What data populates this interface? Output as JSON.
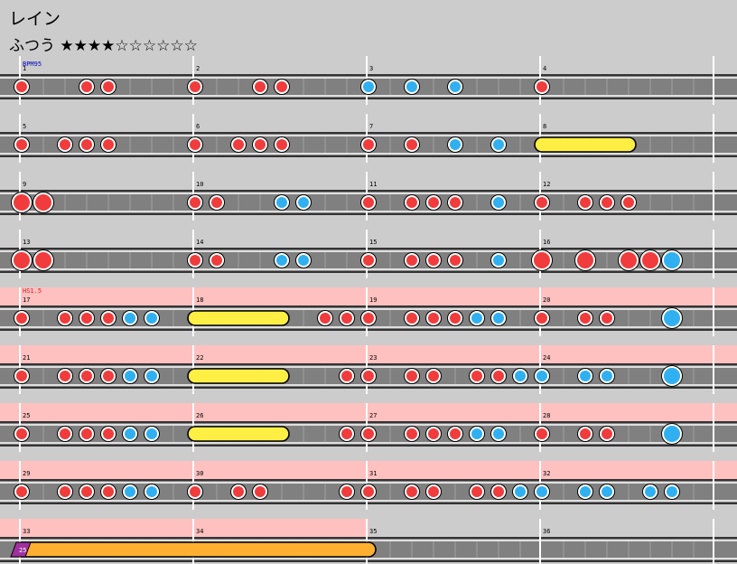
{
  "song": {
    "title": "レイン",
    "difficulty": "ふつう",
    "stars_filled": "★★★★",
    "stars_empty": "☆☆☆☆☆☆",
    "level": 4,
    "level_max": 10
  },
  "markers": {
    "bpm": "BPM95",
    "hs": "HS1.5"
  },
  "colors": {
    "background": "#cccccc",
    "lane": "#808080",
    "highlight": "#ffc0c0",
    "don": "#f03c3c",
    "ka": "#30b0f0",
    "roll": "#ffee44",
    "balloon": "#ffb030",
    "bpm_text": "#0000c0",
    "hs_text": "#e02020"
  },
  "chart": {
    "rows": [
      {
        "measures": [
          1,
          2,
          3,
          4
        ],
        "highlight": false,
        "notes": [
          {
            "m": 1,
            "b": 0,
            "t": "don"
          },
          {
            "m": 1,
            "b": 3,
            "t": "don"
          },
          {
            "m": 1,
            "b": 4,
            "t": "don"
          },
          {
            "m": 2,
            "b": 0,
            "t": "don"
          },
          {
            "m": 2,
            "b": 3,
            "t": "don"
          },
          {
            "m": 2,
            "b": 4,
            "t": "don"
          },
          {
            "m": 3,
            "b": 0,
            "t": "ka"
          },
          {
            "m": 3,
            "b": 2,
            "t": "ka"
          },
          {
            "m": 3,
            "b": 4,
            "t": "ka"
          },
          {
            "m": 4,
            "b": 0,
            "t": "don"
          }
        ]
      },
      {
        "measures": [
          5,
          6,
          7,
          8
        ],
        "highlight": false,
        "notes": [
          {
            "m": 5,
            "b": 0,
            "t": "don"
          },
          {
            "m": 5,
            "b": 2,
            "t": "don"
          },
          {
            "m": 5,
            "b": 3,
            "t": "don"
          },
          {
            "m": 5,
            "b": 4,
            "t": "don"
          },
          {
            "m": 6,
            "b": 0,
            "t": "don"
          },
          {
            "m": 6,
            "b": 2,
            "t": "don"
          },
          {
            "m": 6,
            "b": 3,
            "t": "don"
          },
          {
            "m": 6,
            "b": 4,
            "t": "don"
          },
          {
            "m": 7,
            "b": 0,
            "t": "don"
          },
          {
            "m": 7,
            "b": 2,
            "t": "don"
          },
          {
            "m": 7,
            "b": 4,
            "t": "ka"
          },
          {
            "m": 7,
            "b": 6,
            "t": "ka"
          },
          {
            "m": 8,
            "b": 0,
            "t": "roll",
            "e": 4
          }
        ]
      },
      {
        "measures": [
          9,
          10,
          11,
          12
        ],
        "highlight": false,
        "notes": [
          {
            "m": 9,
            "b": 0,
            "t": "DON"
          },
          {
            "m": 9,
            "b": 1,
            "t": "DON"
          },
          {
            "m": 10,
            "b": 0,
            "t": "don"
          },
          {
            "m": 10,
            "b": 1,
            "t": "don"
          },
          {
            "m": 10,
            "b": 4,
            "t": "ka"
          },
          {
            "m": 10,
            "b": 5,
            "t": "ka"
          },
          {
            "m": 11,
            "b": 0,
            "t": "don"
          },
          {
            "m": 11,
            "b": 2,
            "t": "don"
          },
          {
            "m": 11,
            "b": 3,
            "t": "don"
          },
          {
            "m": 11,
            "b": 4,
            "t": "don"
          },
          {
            "m": 11,
            "b": 6,
            "t": "ka"
          },
          {
            "m": 12,
            "b": 0,
            "t": "don"
          },
          {
            "m": 12,
            "b": 2,
            "t": "don"
          },
          {
            "m": 12,
            "b": 3,
            "t": "don"
          },
          {
            "m": 12,
            "b": 4,
            "t": "don"
          }
        ]
      },
      {
        "measures": [
          13,
          14,
          15,
          16
        ],
        "highlight": false,
        "notes": [
          {
            "m": 13,
            "b": 0,
            "t": "DON"
          },
          {
            "m": 13,
            "b": 1,
            "t": "DON"
          },
          {
            "m": 14,
            "b": 0,
            "t": "don"
          },
          {
            "m": 14,
            "b": 1,
            "t": "don"
          },
          {
            "m": 14,
            "b": 4,
            "t": "ka"
          },
          {
            "m": 14,
            "b": 5,
            "t": "ka"
          },
          {
            "m": 15,
            "b": 0,
            "t": "don"
          },
          {
            "m": 15,
            "b": 2,
            "t": "don"
          },
          {
            "m": 15,
            "b": 3,
            "t": "don"
          },
          {
            "m": 15,
            "b": 4,
            "t": "don"
          },
          {
            "m": 15,
            "b": 6,
            "t": "ka"
          },
          {
            "m": 16,
            "b": 0,
            "t": "DON"
          },
          {
            "m": 16,
            "b": 2,
            "t": "DON"
          },
          {
            "m": 16,
            "b": 4,
            "t": "DON"
          },
          {
            "m": 16,
            "b": 5,
            "t": "DON"
          },
          {
            "m": 16,
            "b": 6,
            "t": "KA"
          }
        ]
      },
      {
        "measures": [
          17,
          18,
          19,
          20
        ],
        "highlight": true,
        "notes": [
          {
            "m": 17,
            "b": 0,
            "t": "don"
          },
          {
            "m": 17,
            "b": 2,
            "t": "don"
          },
          {
            "m": 17,
            "b": 3,
            "t": "don"
          },
          {
            "m": 17,
            "b": 4,
            "t": "don"
          },
          {
            "m": 17,
            "b": 5,
            "t": "ka"
          },
          {
            "m": 17,
            "b": 6,
            "t": "ka"
          },
          {
            "m": 18,
            "b": 0,
            "t": "roll",
            "e": 4
          },
          {
            "m": 18,
            "b": 6,
            "t": "don"
          },
          {
            "m": 18,
            "b": 7,
            "t": "don"
          },
          {
            "m": 19,
            "b": 0,
            "t": "don"
          },
          {
            "m": 19,
            "b": 2,
            "t": "don"
          },
          {
            "m": 19,
            "b": 3,
            "t": "don"
          },
          {
            "m": 19,
            "b": 4,
            "t": "don"
          },
          {
            "m": 19,
            "b": 5,
            "t": "ka"
          },
          {
            "m": 19,
            "b": 6,
            "t": "ka"
          },
          {
            "m": 20,
            "b": 0,
            "t": "don"
          },
          {
            "m": 20,
            "b": 2,
            "t": "don"
          },
          {
            "m": 20,
            "b": 3,
            "t": "don"
          },
          {
            "m": 20,
            "b": 6,
            "t": "KA"
          }
        ]
      },
      {
        "measures": [
          21,
          22,
          23,
          24
        ],
        "highlight": true,
        "notes": [
          {
            "m": 21,
            "b": 0,
            "t": "don"
          },
          {
            "m": 21,
            "b": 2,
            "t": "don"
          },
          {
            "m": 21,
            "b": 3,
            "t": "don"
          },
          {
            "m": 21,
            "b": 4,
            "t": "don"
          },
          {
            "m": 21,
            "b": 5,
            "t": "ka"
          },
          {
            "m": 21,
            "b": 6,
            "t": "ka"
          },
          {
            "m": 22,
            "b": 0,
            "t": "roll",
            "e": 4
          },
          {
            "m": 22,
            "b": 7,
            "t": "don"
          },
          {
            "m": 23,
            "b": 0,
            "t": "don"
          },
          {
            "m": 23,
            "b": 2,
            "t": "don"
          },
          {
            "m": 23,
            "b": 3,
            "t": "don"
          },
          {
            "m": 23,
            "b": 5,
            "t": "don"
          },
          {
            "m": 23,
            "b": 6,
            "t": "don"
          },
          {
            "m": 23,
            "b": 7,
            "t": "ka"
          },
          {
            "m": 24,
            "b": 0,
            "t": "ka"
          },
          {
            "m": 24,
            "b": 2,
            "t": "ka"
          },
          {
            "m": 24,
            "b": 3,
            "t": "ka"
          },
          {
            "m": 24,
            "b": 6,
            "t": "KA"
          }
        ]
      },
      {
        "measures": [
          25,
          26,
          27,
          28
        ],
        "highlight": true,
        "notes": [
          {
            "m": 25,
            "b": 0,
            "t": "don"
          },
          {
            "m": 25,
            "b": 2,
            "t": "don"
          },
          {
            "m": 25,
            "b": 3,
            "t": "don"
          },
          {
            "m": 25,
            "b": 4,
            "t": "don"
          },
          {
            "m": 25,
            "b": 5,
            "t": "ka"
          },
          {
            "m": 25,
            "b": 6,
            "t": "ka"
          },
          {
            "m": 26,
            "b": 0,
            "t": "roll",
            "e": 4
          },
          {
            "m": 26,
            "b": 7,
            "t": "don"
          },
          {
            "m": 27,
            "b": 0,
            "t": "don"
          },
          {
            "m": 27,
            "b": 2,
            "t": "don"
          },
          {
            "m": 27,
            "b": 3,
            "t": "don"
          },
          {
            "m": 27,
            "b": 4,
            "t": "don"
          },
          {
            "m": 27,
            "b": 5,
            "t": "ka"
          },
          {
            "m": 27,
            "b": 6,
            "t": "ka"
          },
          {
            "m": 28,
            "b": 0,
            "t": "don"
          },
          {
            "m": 28,
            "b": 2,
            "t": "don"
          },
          {
            "m": 28,
            "b": 3,
            "t": "don"
          },
          {
            "m": 28,
            "b": 6,
            "t": "KA"
          }
        ]
      },
      {
        "measures": [
          29,
          30,
          31,
          32
        ],
        "highlight": true,
        "notes": [
          {
            "m": 29,
            "b": 0,
            "t": "don"
          },
          {
            "m": 29,
            "b": 2,
            "t": "don"
          },
          {
            "m": 29,
            "b": 3,
            "t": "don"
          },
          {
            "m": 29,
            "b": 4,
            "t": "don"
          },
          {
            "m": 29,
            "b": 5,
            "t": "ka"
          },
          {
            "m": 29,
            "b": 6,
            "t": "ka"
          },
          {
            "m": 30,
            "b": 0,
            "t": "don"
          },
          {
            "m": 30,
            "b": 2,
            "t": "don"
          },
          {
            "m": 30,
            "b": 3,
            "t": "don"
          },
          {
            "m": 30,
            "b": 7,
            "t": "don"
          },
          {
            "m": 31,
            "b": 0,
            "t": "don"
          },
          {
            "m": 31,
            "b": 2,
            "t": "don"
          },
          {
            "m": 31,
            "b": 3,
            "t": "don"
          },
          {
            "m": 31,
            "b": 5,
            "t": "don"
          },
          {
            "m": 31,
            "b": 6,
            "t": "don"
          },
          {
            "m": 31,
            "b": 7,
            "t": "ka"
          },
          {
            "m": 32,
            "b": 0,
            "t": "ka"
          },
          {
            "m": 32,
            "b": 2,
            "t": "ka"
          },
          {
            "m": 32,
            "b": 3,
            "t": "ka"
          },
          {
            "m": 32,
            "b": 5,
            "t": "ka"
          },
          {
            "m": 32,
            "b": 6,
            "t": "ka"
          }
        ]
      },
      {
        "measures": [
          33,
          34,
          35,
          36
        ],
        "highlight": "partial",
        "notes": [
          {
            "m": 33,
            "b": 0,
            "t": "balloon",
            "e": 16,
            "label": "25"
          }
        ]
      }
    ]
  }
}
